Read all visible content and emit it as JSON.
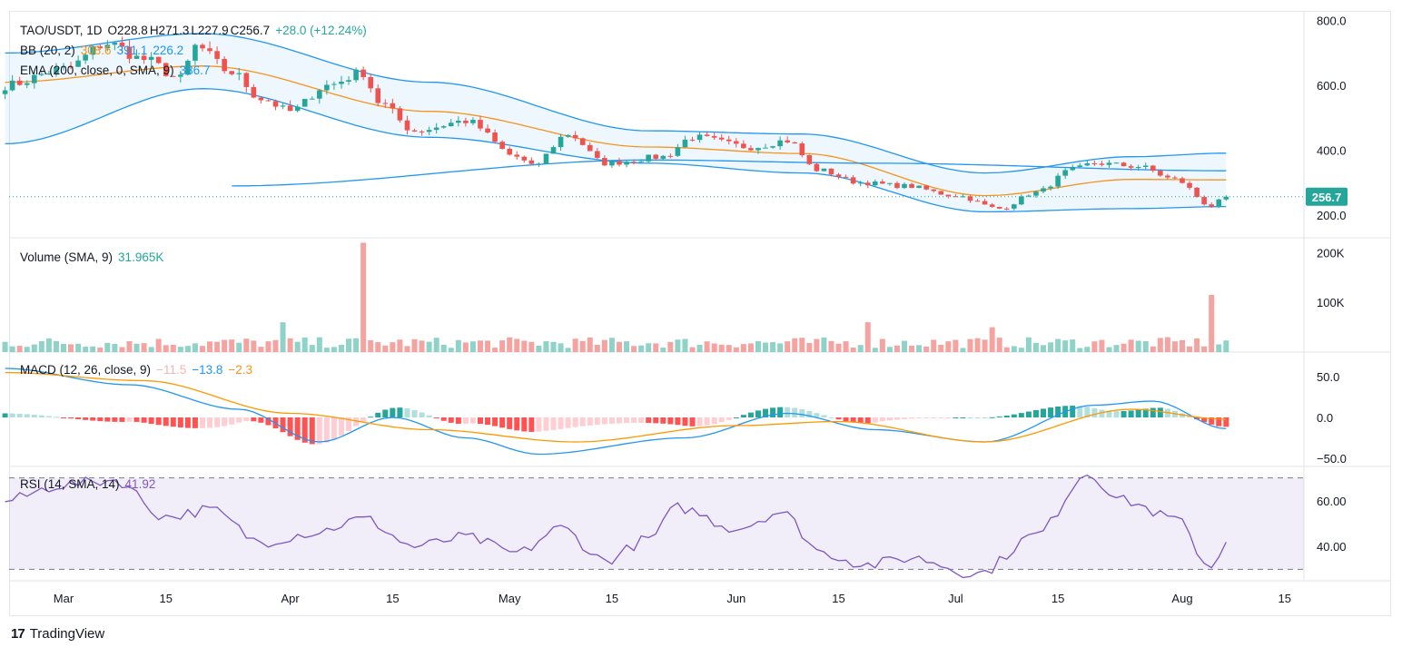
{
  "header": {
    "symbol": "TAO/USDT, 1D",
    "open": "O228.8",
    "high": "H271.3",
    "low": "L227.9",
    "close": "C256.7",
    "change": "+28.0 (+12.24%)"
  },
  "legends": {
    "bb": {
      "label": "BB (20, 2)",
      "basis": "308.6",
      "upper": "391.1",
      "lower": "226.2"
    },
    "ema": {
      "label": "EMA (200, close, 0, SMA, 9)",
      "value": "336.7"
    },
    "volume": {
      "label": "Volume (SMA, 9)",
      "value": "31.965K"
    },
    "macd": {
      "label": "MACD (12, 26, close, 9)",
      "hist": "−11.5",
      "macd": "−13.8",
      "signal": "−2.3"
    },
    "rsi": {
      "label": "RSI (14, SMA, 14)",
      "value": "41.92"
    }
  },
  "price_label": "256.7",
  "brand": "TradingView",
  "colors": {
    "up": "#26a69a",
    "down": "#ef5350",
    "bb_basis": "#f7931a",
    "bb_band": "#2196f3",
    "rsi": "#7e57c2"
  },
  "chart_data": [
    {
      "type": "candlestick",
      "pane": "price",
      "title": "TAO/USDT, 1D",
      "x_ticks": [
        "Mar",
        "15",
        "Apr",
        "15",
        "May",
        "15",
        "Jun",
        "15",
        "Jul",
        "15",
        "Aug",
        "15"
      ],
      "y_ticks": [
        "800.0",
        "600.0",
        "400.0",
        "200.0"
      ],
      "ylim": [
        130,
        830
      ],
      "close_anchors": [
        [
          "2024-02-22",
          600
        ],
        [
          "2024-03-01",
          650
        ],
        [
          "2024-03-07",
          730
        ],
        [
          "2024-03-12",
          680
        ],
        [
          "2024-03-17",
          620
        ],
        [
          "2024-03-19",
          720
        ],
        [
          "2024-03-24",
          640
        ],
        [
          "2024-03-28",
          560
        ],
        [
          "2024-04-01",
          520
        ],
        [
          "2024-04-06",
          600
        ],
        [
          "2024-04-11",
          640
        ],
        [
          "2024-04-13",
          550
        ],
        [
          "2024-04-18",
          460
        ],
        [
          "2024-04-25",
          490
        ],
        [
          "2024-05-02",
          380
        ],
        [
          "2024-05-04",
          350
        ],
        [
          "2024-05-09",
          450
        ],
        [
          "2024-05-14",
          360
        ],
        [
          "2024-05-22",
          380
        ],
        [
          "2024-05-26",
          440
        ],
        [
          "2024-06-03",
          410
        ],
        [
          "2024-06-08",
          430
        ],
        [
          "2024-06-12",
          340
        ],
        [
          "2024-06-18",
          300
        ],
        [
          "2024-06-24",
          290
        ],
        [
          "2024-07-01",
          260
        ],
        [
          "2024-07-07",
          220
        ],
        [
          "2024-07-12",
          270
        ],
        [
          "2024-07-17",
          340
        ],
        [
          "2024-07-20",
          360
        ],
        [
          "2024-07-26",
          350
        ],
        [
          "2024-07-31",
          310
        ],
        [
          "2024-08-05",
          228
        ],
        [
          "2024-08-07",
          256.7
        ]
      ],
      "bb_basis_anchors": [
        [
          "2024-02-22",
          610
        ],
        [
          "2024-03-20",
          660
        ],
        [
          "2024-04-20",
          520
        ],
        [
          "2024-05-20",
          410
        ],
        [
          "2024-06-10",
          390
        ],
        [
          "2024-07-05",
          260
        ],
        [
          "2024-07-25",
          310
        ],
        [
          "2024-08-07",
          308.6
        ]
      ],
      "bb_upper_anchors": [
        [
          "2024-02-22",
          700
        ],
        [
          "2024-03-20",
          760
        ],
        [
          "2024-04-20",
          610
        ],
        [
          "2024-05-20",
          460
        ],
        [
          "2024-06-10",
          450
        ],
        [
          "2024-07-05",
          330
        ],
        [
          "2024-07-25",
          380
        ],
        [
          "2024-08-07",
          391.1
        ]
      ],
      "bb_lower_anchors": [
        [
          "2024-02-22",
          420
        ],
        [
          "2024-03-20",
          590
        ],
        [
          "2024-04-20",
          440
        ],
        [
          "2024-05-20",
          360
        ],
        [
          "2024-06-10",
          330
        ],
        [
          "2024-07-05",
          210
        ],
        [
          "2024-07-25",
          220
        ],
        [
          "2024-08-07",
          226.2
        ]
      ],
      "ema200_anchors": [
        [
          "2024-03-24",
          290
        ],
        [
          "2024-05-20",
          370
        ],
        [
          "2024-06-20",
          360
        ],
        [
          "2024-08-07",
          336.7
        ]
      ],
      "last_price": 256.7
    },
    {
      "type": "bar",
      "pane": "volume",
      "title": "Volume (SMA, 9)",
      "y_ticks": [
        "200K",
        "100K"
      ],
      "ylim": [
        0,
        230000
      ],
      "spikes": [
        [
          "2024-04-11",
          220000
        ],
        [
          "2024-08-05",
          115000
        ],
        [
          "2024-06-19",
          60000
        ],
        [
          "2024-07-06",
          50000
        ],
        [
          "2024-03-31",
          60000
        ]
      ],
      "base_level": 20000
    },
    {
      "type": "line",
      "pane": "macd",
      "title": "MACD (12, 26, close, 9)",
      "y_ticks": [
        "50.0",
        "0.0",
        "−50.0"
      ],
      "ylim": [
        -60,
        80
      ],
      "macd_anchors": [
        [
          "2024-02-22",
          60
        ],
        [
          "2024-03-10",
          40
        ],
        [
          "2024-03-25",
          10
        ],
        [
          "2024-04-05",
          -30
        ],
        [
          "2024-04-15",
          0
        ],
        [
          "2024-04-25",
          -25
        ],
        [
          "2024-05-05",
          -45
        ],
        [
          "2024-05-25",
          -25
        ],
        [
          "2024-06-08",
          5
        ],
        [
          "2024-06-20",
          -15
        ],
        [
          "2024-07-05",
          -30
        ],
        [
          "2024-07-20",
          15
        ],
        [
          "2024-07-28",
          20
        ],
        [
          "2024-08-07",
          -13.8
        ]
      ],
      "signal_anchors": [
        [
          "2024-02-22",
          55
        ],
        [
          "2024-03-12",
          45
        ],
        [
          "2024-04-01",
          5
        ],
        [
          "2024-04-20",
          -15
        ],
        [
          "2024-05-10",
          -30
        ],
        [
          "2024-06-01",
          -10
        ],
        [
          "2024-06-15",
          -5
        ],
        [
          "2024-07-05",
          -30
        ],
        [
          "2024-07-25",
          10
        ],
        [
          "2024-08-07",
          -2.3
        ]
      ]
    },
    {
      "type": "line",
      "pane": "rsi",
      "title": "RSI (14, SMA, 14)",
      "y_ticks": [
        "60.00",
        "40.00"
      ],
      "ylim": [
        25,
        75
      ],
      "bands": [
        70,
        30
      ],
      "rsi_anchors": [
        [
          "2024-02-22",
          60
        ],
        [
          "2024-03-01",
          67
        ],
        [
          "2024-03-08",
          69
        ],
        [
          "2024-03-15",
          53
        ],
        [
          "2024-03-21",
          56
        ],
        [
          "2024-03-28",
          42
        ],
        [
          "2024-04-04",
          46
        ],
        [
          "2024-04-11",
          52
        ],
        [
          "2024-04-18",
          40
        ],
        [
          "2024-04-25",
          44
        ],
        [
          "2024-05-02",
          37
        ],
        [
          "2024-05-08",
          48
        ],
        [
          "2024-05-14",
          34
        ],
        [
          "2024-05-20",
          43
        ],
        [
          "2024-05-24",
          57
        ],
        [
          "2024-06-01",
          48
        ],
        [
          "2024-06-07",
          55
        ],
        [
          "2024-06-13",
          37
        ],
        [
          "2024-06-19",
          32
        ],
        [
          "2024-06-25",
          35
        ],
        [
          "2024-07-04",
          28
        ],
        [
          "2024-07-12",
          45
        ],
        [
          "2024-07-19",
          72
        ],
        [
          "2024-07-24",
          60
        ],
        [
          "2024-07-31",
          52
        ],
        [
          "2024-08-05",
          31
        ],
        [
          "2024-08-07",
          41.92
        ]
      ]
    }
  ]
}
